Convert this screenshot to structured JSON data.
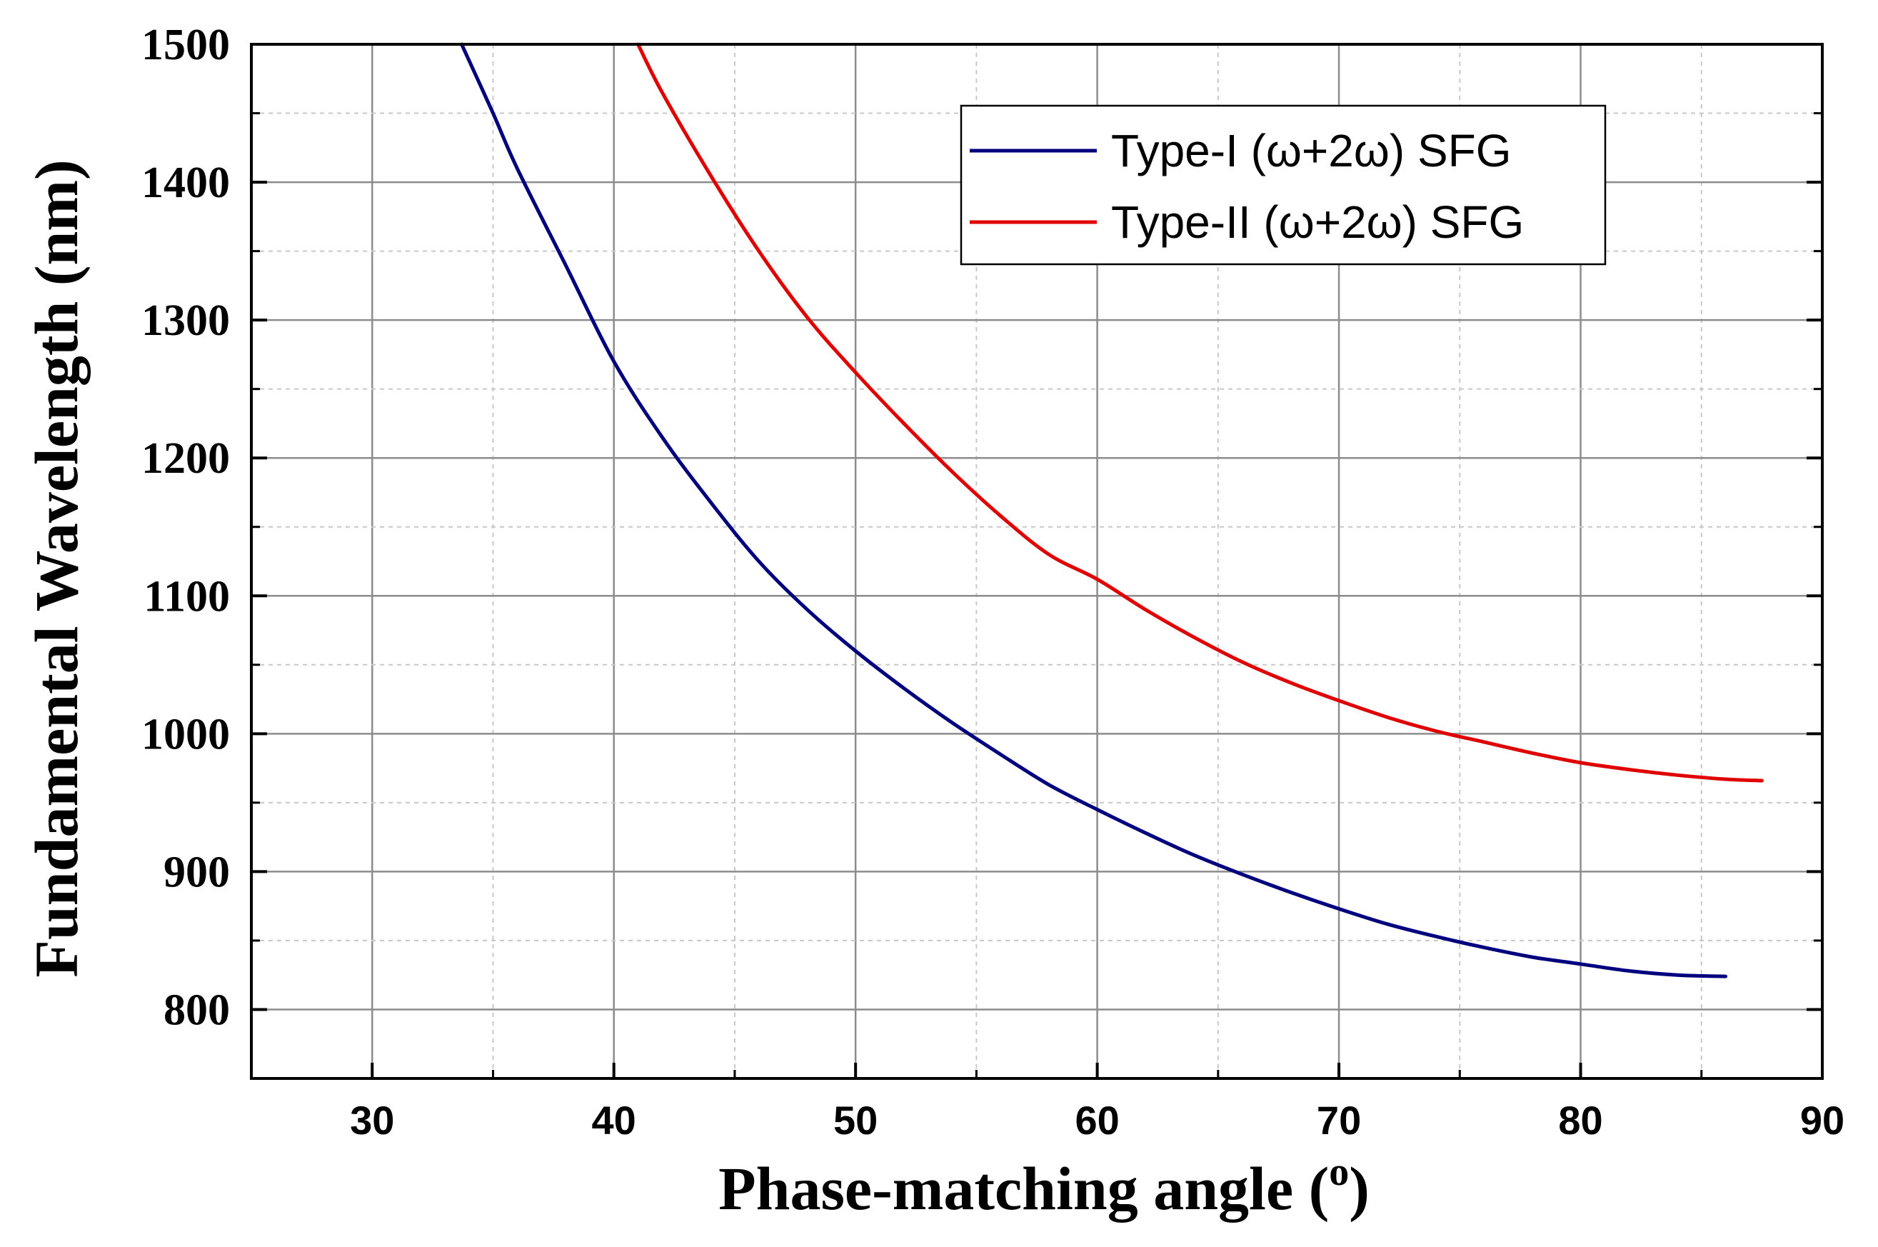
{
  "chart_data": {
    "type": "line",
    "title": "",
    "xlabel": "Phase-matching angle (o)",
    "xlabel_main": "Phase-matching angle (",
    "xlabel_sup": "o",
    "xlabel_close": ")",
    "ylabel": "Fundamental Wavelength (nm)",
    "xlim": [
      25,
      90
    ],
    "ylim": [
      750,
      1500
    ],
    "xticks": [
      30,
      40,
      50,
      60,
      70,
      80,
      90
    ],
    "xtick_labels": [
      "30",
      "40",
      "50",
      "60",
      "70",
      "80",
      "90"
    ],
    "yticks": [
      800,
      900,
      1000,
      1100,
      1200,
      1300,
      1400,
      1500
    ],
    "ytick_labels": [
      "800",
      "900",
      "1000",
      "1100",
      "1200",
      "1300",
      "1400",
      "1500"
    ],
    "grid": true,
    "legend_position": "top-right",
    "series": [
      {
        "name": "Type-I (ω+2ω) SFG",
        "color": "#00007f",
        "x": [
          33.7,
          35,
          36,
          38,
          40,
          42,
          44,
          46,
          48,
          50,
          52,
          54,
          56,
          58,
          60,
          62,
          64,
          66,
          68,
          70,
          72,
          74,
          76,
          78,
          80,
          82,
          84,
          86
        ],
        "y": [
          1500,
          1450,
          1410,
          1340,
          1270,
          1215,
          1168,
          1125,
          1090,
          1060,
          1033,
          1008,
          985,
          963,
          945,
          928,
          912,
          898,
          885,
          873,
          862,
          853,
          845,
          838,
          833,
          828,
          825,
          824
        ]
      },
      {
        "name": "Type-II (ω+2ω) SFG",
        "color": "#e00000",
        "x": [
          41,
          42,
          44,
          46,
          48,
          50,
          52,
          54,
          56,
          58,
          60,
          62,
          64,
          66,
          68,
          70,
          72,
          74,
          76,
          78,
          80,
          82,
          84,
          86,
          87.5
        ],
        "y": [
          1500,
          1465,
          1405,
          1350,
          1302,
          1262,
          1225,
          1190,
          1158,
          1130,
          1112,
          1090,
          1070,
          1052,
          1037,
          1024,
          1012,
          1002,
          994,
          986,
          979,
          974,
          970,
          967,
          966
        ]
      }
    ]
  }
}
